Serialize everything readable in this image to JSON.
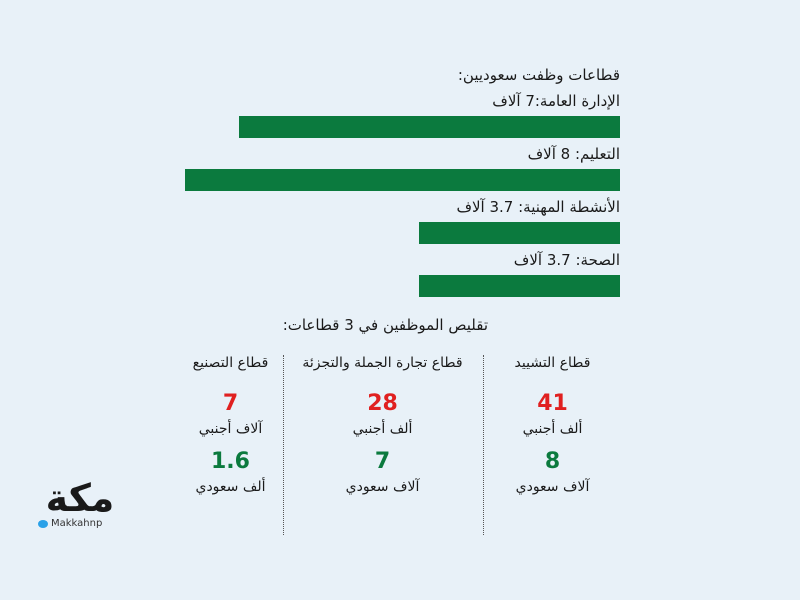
{
  "chart_data": [
    {
      "type": "bar",
      "orientation": "horizontal",
      "title": "قطاعات وظفت سعوديين:",
      "categories": [
        "الإدارة العامة",
        "التعليم",
        "الأنشطة المهنية",
        "الصحة"
      ],
      "labels": [
        "الإدارة العامة:7 آلاف",
        "التعليم: 8 آلاف",
        "الأنشطة المهنية: 3.7 آلاف",
        "الصحة: 3.7 آلاف"
      ],
      "values": [
        7,
        8,
        3.7,
        3.7
      ],
      "unit": "آلاف",
      "xlim": [
        0,
        8
      ],
      "bar_color": "#0b7a3e",
      "axis_direction": "right-to-left"
    },
    {
      "type": "table",
      "title": "تقليص الموظفين في 3 قطاعات:",
      "columns": [
        {
          "name": "قطاع التشييد",
          "foreign": "41",
          "foreign_unit": "ألف أجنبي",
          "saudi": "8",
          "saudi_unit": "آلاف سعودي"
        },
        {
          "name": "قطاع تجارة الجملة والتجزئة",
          "foreign": "28",
          "foreign_unit": "ألف أجنبي",
          "saudi": "7",
          "saudi_unit": "آلاف سعودي"
        },
        {
          "name": "قطاع التصنيع",
          "foreign": "7",
          "foreign_unit": "آلاف أجنبي",
          "saudi": "1.6",
          "saudi_unit": "ألف سعودي"
        }
      ],
      "foreign_color": "#e02020",
      "saudi_color": "#0b7a3e"
    }
  ],
  "logo": {
    "text": "مكة",
    "handle": "Makkahnp",
    "icon": "twitter-bird-icon",
    "icon_color": "#2aa1e8"
  },
  "colors": {
    "background": "#e8f1f8",
    "bar": "#0b7a3e",
    "red": "#e02020",
    "green": "#0b7a3e"
  }
}
